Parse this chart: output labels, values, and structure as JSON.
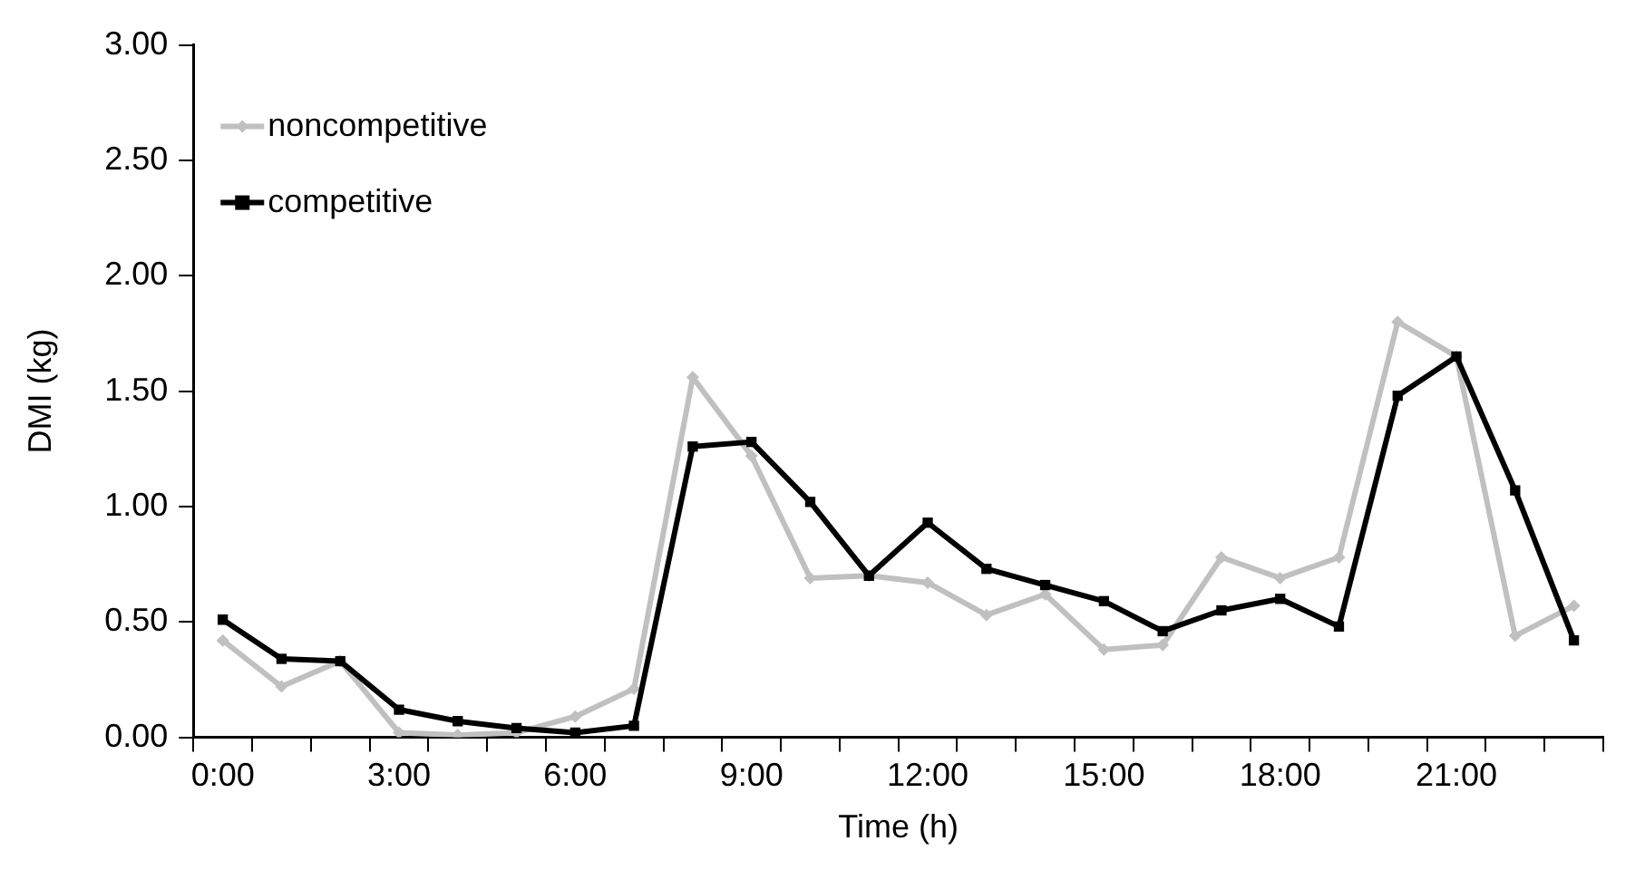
{
  "chart_data": {
    "type": "line",
    "xlabel": "Time (h)",
    "ylabel": "DMI (kg)",
    "categories": [
      "0:00",
      null,
      null,
      "3:00",
      null,
      null,
      "6:00",
      null,
      null,
      "9:00",
      null,
      null,
      "12:00",
      null,
      null,
      "15:00",
      null,
      null,
      "18:00",
      null,
      null,
      "21:00",
      null,
      null
    ],
    "series": [
      {
        "name": "noncompetitive",
        "color": "#c0c0c0",
        "marker": "diamond",
        "values": [
          0.42,
          0.22,
          0.33,
          0.02,
          0.01,
          0.02,
          0.09,
          0.21,
          1.56,
          1.22,
          0.69,
          0.7,
          0.67,
          0.53,
          0.62,
          0.38,
          0.4,
          0.78,
          0.69,
          0.78,
          1.8,
          1.65,
          0.44,
          0.57
        ]
      },
      {
        "name": "competitive",
        "color": "#000000",
        "marker": "square",
        "values": [
          0.51,
          0.34,
          0.33,
          0.12,
          0.07,
          0.04,
          0.02,
          0.05,
          1.26,
          1.28,
          1.02,
          0.7,
          0.93,
          0.73,
          0.66,
          0.59,
          0.46,
          0.55,
          0.6,
          0.48,
          1.48,
          1.65,
          1.07,
          0.42
        ]
      }
    ],
    "ylim": [
      0,
      3
    ],
    "yticks": [
      {
        "value": 0,
        "label": "0.00"
      },
      {
        "value": 0.5,
        "label": "0.50"
      },
      {
        "value": 1,
        "label": "1.00"
      },
      {
        "value": 1.5,
        "label": "1.50"
      },
      {
        "value": 2,
        "label": "2.00"
      },
      {
        "value": 2.5,
        "label": "2.50"
      },
      {
        "value": 3,
        "label": "3.00"
      }
    ],
    "grid": false,
    "legend": "top left",
    "line_style": "solid"
  }
}
